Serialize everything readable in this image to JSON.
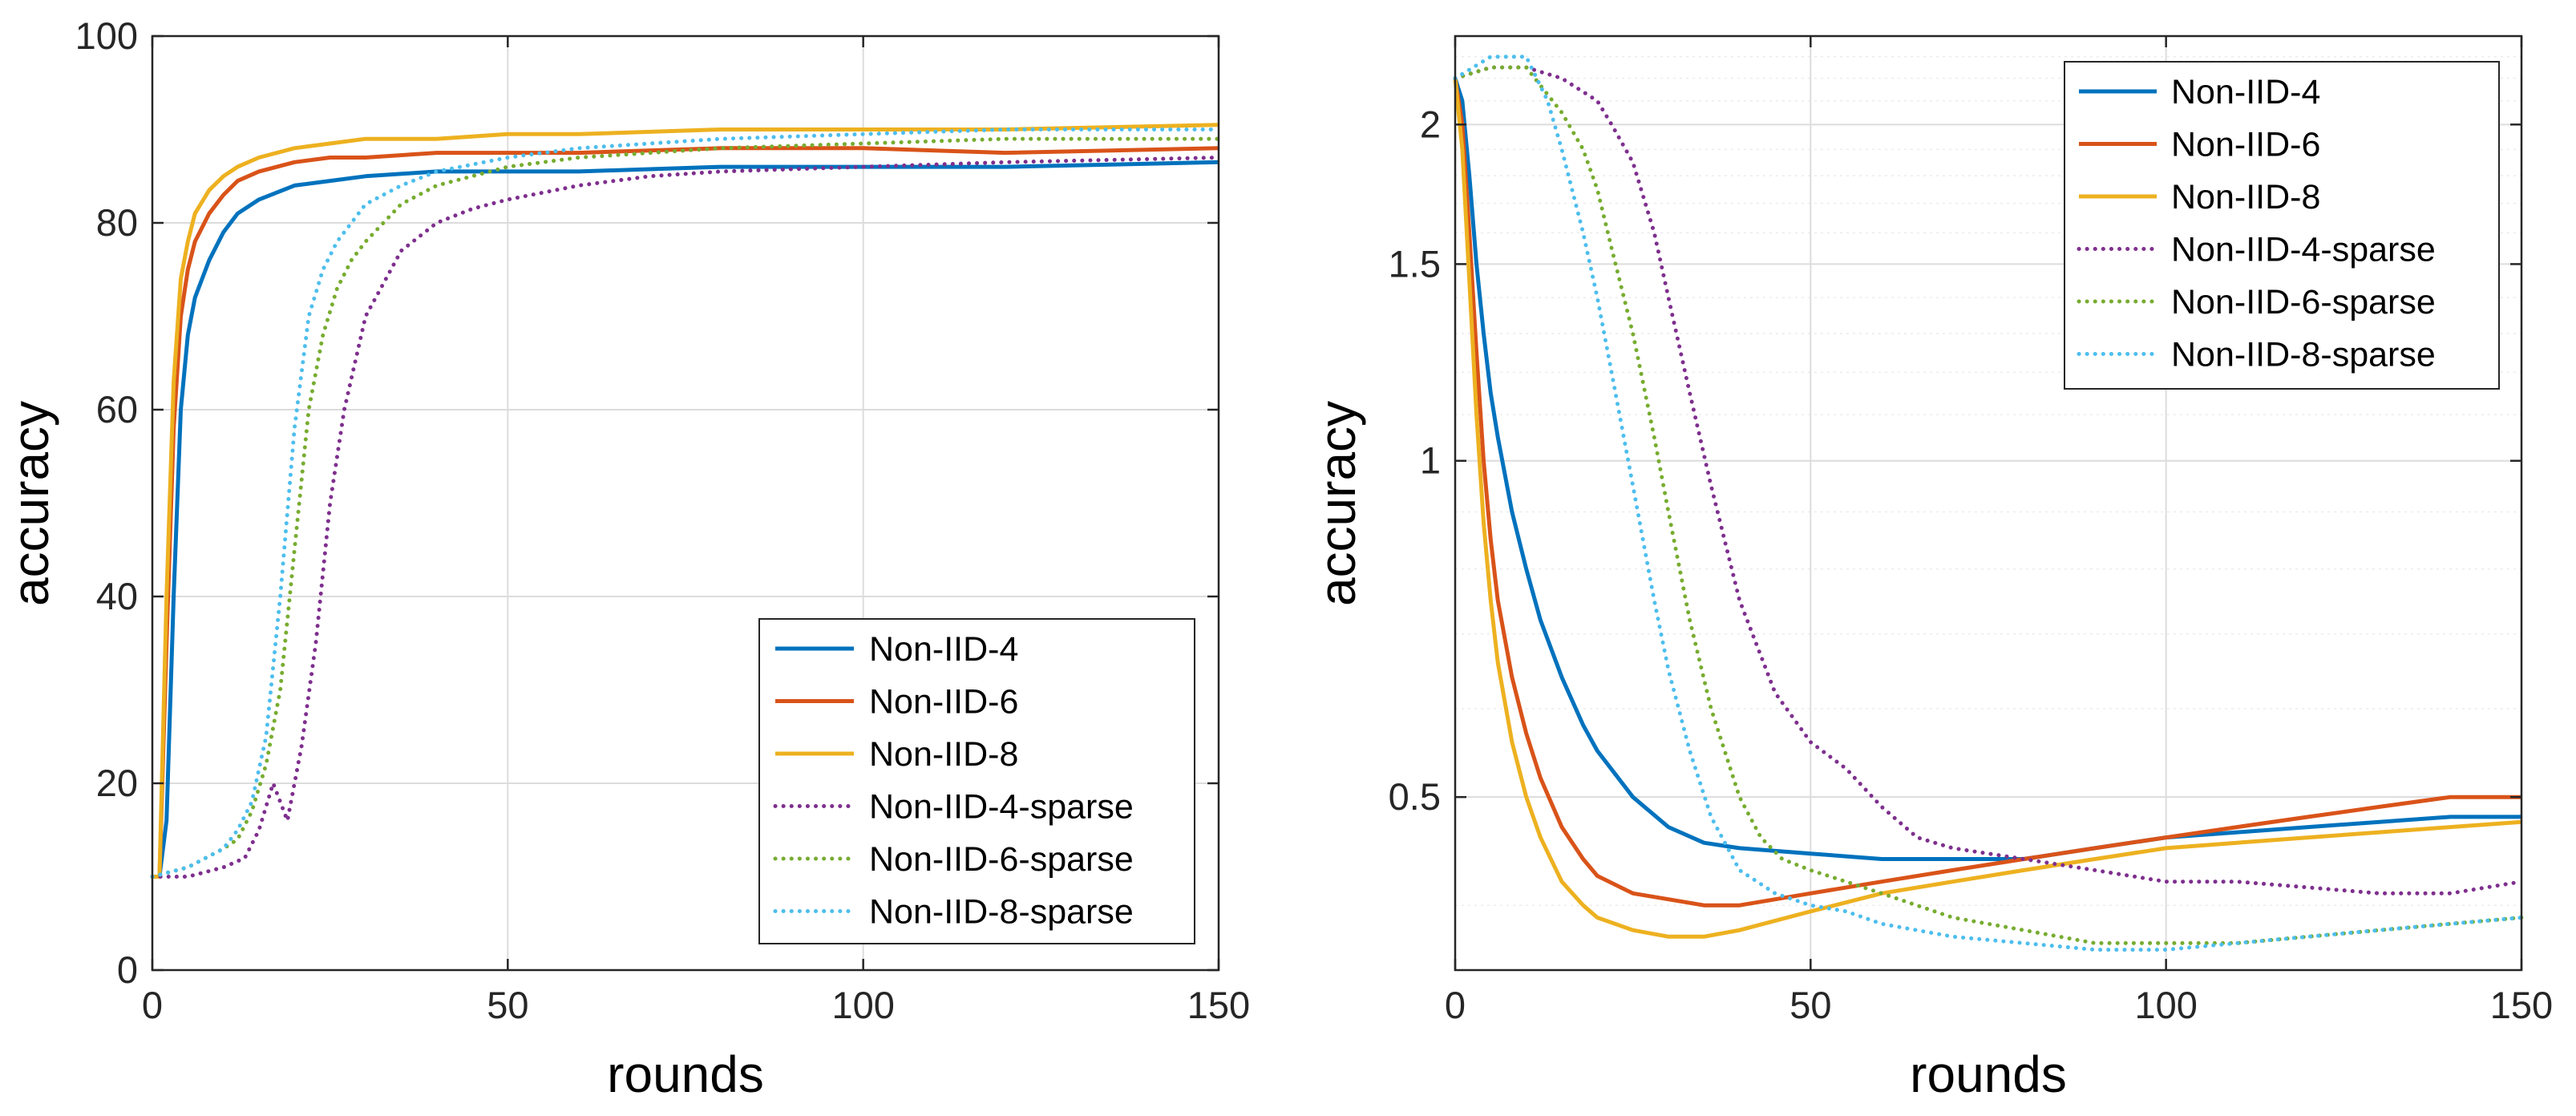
{
  "chart_data": [
    {
      "type": "line",
      "xlabel": "rounds",
      "ylabel": "accuracy",
      "yscale": "linear",
      "xlim": [
        0,
        150
      ],
      "ylim": [
        0,
        100
      ],
      "xticks": [
        0,
        50,
        100,
        150
      ],
      "xtick_labels": [
        "0",
        "50",
        "100",
        "150"
      ],
      "yticks": [
        0,
        20,
        40,
        60,
        80,
        100
      ],
      "ytick_labels": [
        "0",
        "20",
        "40",
        "60",
        "80",
        "100"
      ],
      "grid": true,
      "legend_position": "bottom-right",
      "series": [
        {
          "name": "Non-IID-4",
          "color": "#0072BD",
          "style": "solid",
          "x": [
            0,
            1,
            2,
            3,
            4,
            5,
            6,
            8,
            10,
            12,
            15,
            20,
            25,
            30,
            40,
            50,
            60,
            80,
            100,
            120,
            150
          ],
          "y": [
            10,
            10,
            16,
            40,
            60,
            68,
            72,
            76,
            79,
            81,
            82.5,
            84,
            84.5,
            85,
            85.5,
            85.5,
            85.5,
            86,
            86,
            86,
            86.5
          ]
        },
        {
          "name": "Non-IID-6",
          "color": "#D95319",
          "style": "solid",
          "x": [
            0,
            1,
            2,
            3,
            4,
            5,
            6,
            8,
            10,
            12,
            15,
            20,
            25,
            30,
            40,
            50,
            60,
            80,
            100,
            120,
            150
          ],
          "y": [
            10,
            10,
            35,
            58,
            70,
            75,
            78,
            81,
            83,
            84.5,
            85.5,
            86.5,
            87,
            87,
            87.5,
            87.5,
            87.5,
            88,
            88,
            87.5,
            88
          ]
        },
        {
          "name": "Non-IID-8",
          "color": "#EDB120",
          "style": "solid",
          "x": [
            0,
            1,
            2,
            3,
            4,
            5,
            6,
            8,
            10,
            12,
            15,
            20,
            25,
            30,
            40,
            50,
            60,
            80,
            100,
            120,
            150
          ],
          "y": [
            10,
            10,
            40,
            63,
            74,
            78,
            81,
            83.5,
            85,
            86,
            87,
            88,
            88.5,
            89,
            89,
            89.5,
            89.5,
            90,
            90,
            90,
            90.5
          ]
        },
        {
          "name": "Non-IID-4-sparse",
          "color": "#7E2F8E",
          "style": "dotted",
          "x": [
            0,
            5,
            10,
            13,
            15,
            17,
            19,
            21,
            23,
            25,
            27,
            30,
            35,
            40,
            45,
            50,
            60,
            70,
            80,
            100,
            120,
            150
          ],
          "y": [
            10,
            10,
            11,
            12,
            15,
            20,
            16,
            24,
            35,
            50,
            60,
            70,
            77,
            80,
            81.5,
            82.5,
            84,
            85,
            85.5,
            86,
            86.5,
            87
          ]
        },
        {
          "name": "Non-IID-6-sparse",
          "color": "#77AC30",
          "style": "dotted",
          "x": [
            0,
            5,
            10,
            12,
            14,
            16,
            18,
            20,
            22,
            24,
            26,
            28,
            30,
            35,
            40,
            50,
            60,
            80,
            100,
            120,
            150
          ],
          "y": [
            10,
            11,
            13,
            14,
            17,
            22,
            30,
            45,
            60,
            68,
            73,
            76,
            78,
            82,
            84,
            86,
            87,
            88,
            88.5,
            89,
            89
          ]
        },
        {
          "name": "Non-IID-8-sparse",
          "color": "#4DBEEE",
          "style": "dotted",
          "x": [
            0,
            5,
            10,
            12,
            14,
            16,
            18,
            20,
            22,
            24,
            26,
            28,
            30,
            35,
            40,
            50,
            60,
            80,
            100,
            120,
            150
          ],
          "y": [
            10,
            11,
            13,
            15,
            18,
            25,
            40,
            58,
            70,
            75,
            78,
            80,
            82,
            84,
            85.5,
            87,
            88,
            89,
            89.5,
            90,
            90
          ]
        }
      ]
    },
    {
      "type": "line",
      "xlabel": "rounds",
      "ylabel": "accuracy",
      "yscale": "log",
      "xlim": [
        0,
        150
      ],
      "ylim": [
        0.35,
        2.4
      ],
      "xticks": [
        0,
        50,
        100,
        150
      ],
      "xtick_labels": [
        "0",
        "50",
        "100",
        "150"
      ],
      "yticks": [
        0.5,
        1,
        1.5,
        2
      ],
      "ytick_labels": [
        "0.5",
        "1",
        "1.5",
        "2"
      ],
      "grid": true,
      "legend_position": "top-right",
      "series": [
        {
          "name": "Non-IID-4",
          "color": "#0072BD",
          "style": "solid",
          "x": [
            0,
            1,
            2,
            3,
            4,
            5,
            6,
            8,
            10,
            12,
            15,
            18,
            20,
            25,
            30,
            35,
            40,
            50,
            60,
            70,
            80,
            90,
            100,
            110,
            120,
            130,
            140,
            150
          ],
          "y": [
            2.2,
            2.1,
            1.8,
            1.5,
            1.3,
            1.15,
            1.05,
            0.9,
            0.8,
            0.72,
            0.64,
            0.58,
            0.55,
            0.5,
            0.47,
            0.455,
            0.45,
            0.445,
            0.44,
            0.44,
            0.44,
            0.45,
            0.46,
            0.465,
            0.47,
            0.475,
            0.48,
            0.48
          ]
        },
        {
          "name": "Non-IID-6",
          "color": "#D95319",
          "style": "solid",
          "x": [
            0,
            1,
            2,
            3,
            4,
            5,
            6,
            8,
            10,
            12,
            15,
            18,
            20,
            25,
            30,
            35,
            40,
            50,
            60,
            70,
            80,
            90,
            100,
            110,
            120,
            130,
            140,
            150
          ],
          "y": [
            2.2,
            2.0,
            1.6,
            1.25,
            1.0,
            0.85,
            0.75,
            0.64,
            0.57,
            0.52,
            0.47,
            0.44,
            0.425,
            0.41,
            0.405,
            0.4,
            0.4,
            0.41,
            0.42,
            0.43,
            0.44,
            0.45,
            0.46,
            0.47,
            0.48,
            0.49,
            0.5,
            0.5
          ]
        },
        {
          "name": "Non-IID-8",
          "color": "#EDB120",
          "style": "solid",
          "x": [
            0,
            1,
            2,
            3,
            4,
            5,
            6,
            8,
            10,
            12,
            15,
            18,
            20,
            25,
            30,
            35,
            40,
            50,
            60,
            70,
            80,
            90,
            100,
            110,
            120,
            130,
            140,
            150
          ],
          "y": [
            2.2,
            1.9,
            1.45,
            1.1,
            0.88,
            0.75,
            0.66,
            0.56,
            0.5,
            0.46,
            0.42,
            0.4,
            0.39,
            0.38,
            0.375,
            0.375,
            0.38,
            0.395,
            0.41,
            0.42,
            0.43,
            0.44,
            0.45,
            0.455,
            0.46,
            0.465,
            0.47,
            0.475
          ]
        },
        {
          "name": "Non-IID-4-sparse",
          "color": "#7E2F8E",
          "style": "dotted",
          "x": [
            0,
            5,
            10,
            15,
            20,
            22,
            25,
            28,
            30,
            33,
            36,
            40,
            45,
            50,
            55,
            60,
            65,
            70,
            80,
            90,
            100,
            110,
            120,
            130,
            140,
            150
          ],
          "y": [
            2.2,
            2.25,
            2.25,
            2.2,
            2.1,
            2.0,
            1.85,
            1.6,
            1.4,
            1.15,
            0.95,
            0.75,
            0.62,
            0.56,
            0.53,
            0.49,
            0.46,
            0.45,
            0.44,
            0.43,
            0.42,
            0.42,
            0.415,
            0.41,
            0.41,
            0.42
          ]
        },
        {
          "name": "Non-IID-6-sparse",
          "color": "#77AC30",
          "style": "dotted",
          "x": [
            0,
            5,
            10,
            15,
            18,
            20,
            22,
            25,
            28,
            30,
            33,
            36,
            40,
            43,
            46,
            50,
            55,
            60,
            70,
            80,
            90,
            100,
            110,
            120,
            130,
            140,
            150
          ],
          "y": [
            2.2,
            2.25,
            2.25,
            2.05,
            1.9,
            1.75,
            1.55,
            1.3,
            1.05,
            0.9,
            0.72,
            0.6,
            0.5,
            0.46,
            0.44,
            0.43,
            0.42,
            0.41,
            0.39,
            0.38,
            0.37,
            0.37,
            0.37,
            0.375,
            0.38,
            0.385,
            0.39
          ]
        },
        {
          "name": "Non-IID-8-sparse",
          "color": "#4DBEEE",
          "style": "dotted",
          "x": [
            0,
            5,
            10,
            13,
            15,
            18,
            20,
            22,
            25,
            28,
            30,
            33,
            36,
            40,
            45,
            50,
            55,
            60,
            70,
            80,
            90,
            100,
            110,
            120,
            130,
            140,
            150
          ],
          "y": [
            2.2,
            2.3,
            2.3,
            2.1,
            1.9,
            1.6,
            1.4,
            1.2,
            0.95,
            0.75,
            0.65,
            0.55,
            0.48,
            0.43,
            0.41,
            0.4,
            0.395,
            0.385,
            0.375,
            0.37,
            0.365,
            0.365,
            0.37,
            0.375,
            0.38,
            0.385,
            0.39
          ]
        }
      ]
    }
  ]
}
